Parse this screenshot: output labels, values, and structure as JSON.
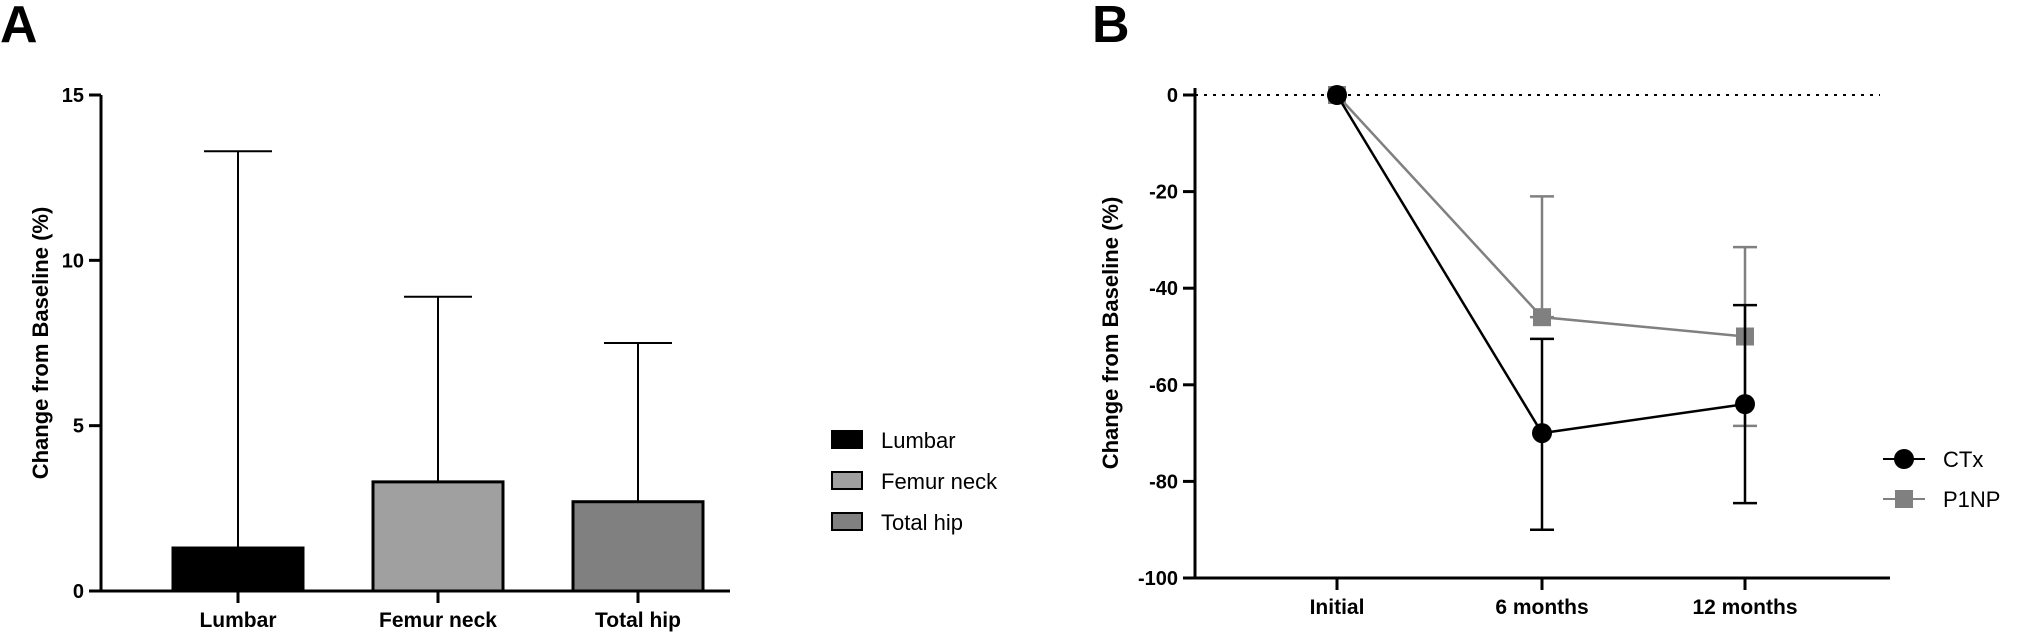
{
  "chart_data": [
    {
      "panel_label": "A",
      "type": "bar",
      "categories": [
        "Lumbar",
        "Femur neck",
        "Total hip"
      ],
      "values": [
        1.3,
        3.3,
        2.7
      ],
      "error_upper": [
        13.3,
        8.9,
        7.5
      ],
      "colors": [
        "#000000",
        "#a0a0a0",
        "#808080"
      ],
      "ylabel": "Change from Baseline (%)",
      "xlabel": "",
      "ylim": [
        0,
        15
      ],
      "yticks": [
        0,
        5,
        10,
        15
      ],
      "legend": {
        "position": "right",
        "entries": [
          "Lumbar",
          "Femur neck",
          "Total hip"
        ]
      },
      "grid": false
    },
    {
      "panel_label": "B",
      "type": "line",
      "categories": [
        "Initial",
        "6 months",
        "12 months"
      ],
      "series": [
        {
          "name": "CTx",
          "values": [
            0,
            -70,
            -64
          ],
          "error_low": [
            0,
            -90,
            -84.5
          ],
          "error_high": [
            0,
            -50.5,
            -43.5
          ],
          "color": "#000000",
          "marker": "circle"
        },
        {
          "name": "P1NP",
          "values": [
            0,
            -46,
            -50
          ],
          "error_low": [
            0,
            -46,
            -68.5
          ],
          "error_high": [
            0,
            -21,
            -31.5
          ],
          "color": "#808080",
          "marker": "square"
        }
      ],
      "ylabel": "Change from Baseline (%)",
      "xlabel": "",
      "ylim": [
        -100,
        0
      ],
      "yticks": [
        0,
        -20,
        -40,
        -60,
        -80,
        -100
      ],
      "reference_line": 0,
      "legend": {
        "position": "right",
        "entries": [
          "CTx",
          "P1NP"
        ]
      },
      "grid": false
    }
  ]
}
